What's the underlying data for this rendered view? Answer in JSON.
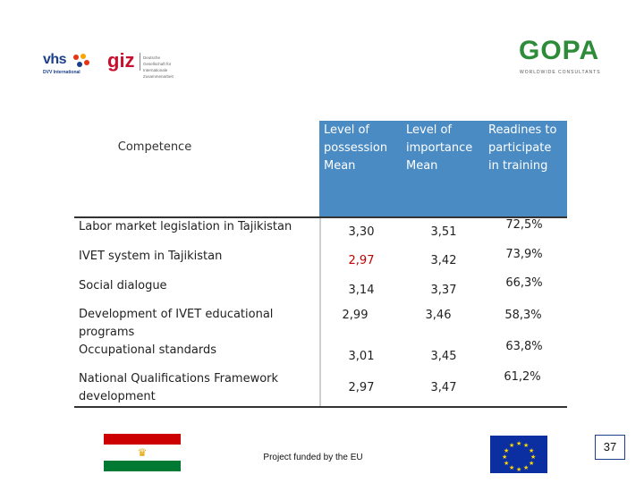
{
  "logos": {
    "vhs": "vhs",
    "vhs_sub": "DVV International",
    "giz": "giz",
    "giz_sub": "Deutsche Gesellschaft für Internationale Zusammenarbeit",
    "gopa": "GOPA",
    "gopa_sub": "WORLDWIDE CONSULTANTS"
  },
  "table": {
    "headers": {
      "competence": "Competence",
      "possession": [
        "Level of",
        "possession",
        "Mean"
      ],
      "importance": [
        "Level of",
        "importance",
        "Mean"
      ],
      "readiness": [
        "Readines to",
        "participate",
        "in training"
      ]
    },
    "header_color": "#4a8bc4",
    "rows": [
      {
        "label": [
          "Labor market legislation in Tajikistan"
        ],
        "possession": "3,30",
        "importance": "3,51",
        "readiness": "72,5%",
        "possession_red": false
      },
      {
        "label": [
          "IVET system in Tajikistan"
        ],
        "possession": "2,97",
        "importance": "3,42",
        "readiness": "73,9%",
        "possession_red": true
      },
      {
        "label": [
          "Social dialogue"
        ],
        "possession": "3,14",
        "importance": "3,37",
        "readiness": "66,3%",
        "possession_red": false
      },
      {
        "label": [
          "Development of IVET educational",
          "programs"
        ],
        "possession": "2,99",
        "importance": "3,46",
        "readiness": "58,3%",
        "possession_red": false
      },
      {
        "label": [
          "Occupational standards"
        ],
        "possession": "3,01",
        "importance": "3,45",
        "readiness": "63,8%",
        "possession_red": false
      },
      {
        "label": [
          "National Qualifications Framework",
          "development"
        ],
        "possession": "2,97",
        "importance": "3,47",
        "readiness": "61,2%",
        "possession_red": false
      }
    ]
  },
  "footer": {
    "funded": "Project funded by the EU",
    "page_number": "37"
  }
}
